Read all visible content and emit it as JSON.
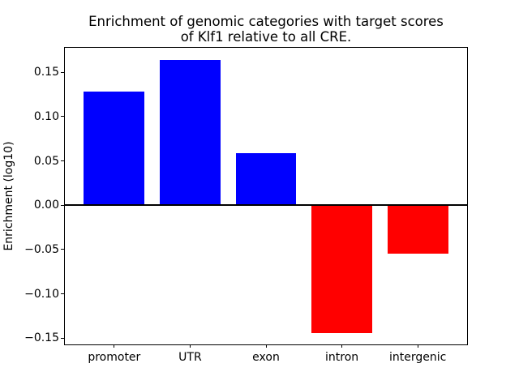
{
  "chart_data": {
    "type": "bar",
    "title": "Enrichment of genomic categories with target scores\nof Klf1 relative to all CRE.",
    "ylabel": "Enrichment (log10)",
    "xlabel": "",
    "categories": [
      "promoter",
      "UTR",
      "exon",
      "intron",
      "intergenic"
    ],
    "values": [
      0.128,
      0.164,
      0.059,
      -0.144,
      -0.055
    ],
    "positive_color": "#0000ff",
    "negative_color": "#ff0000",
    "yticks": [
      0.15,
      0.1,
      0.05,
      0.0,
      -0.05,
      -0.1,
      -0.15
    ],
    "ytick_labels": [
      "0.15",
      "0.10",
      "0.05",
      "0.00",
      "−0.05",
      "−0.10",
      "−0.15"
    ],
    "ylim": [
      -0.157,
      0.1775
    ],
    "grid": false,
    "zero_line": true,
    "axis_color": "#000000",
    "text_color": "#000000",
    "background_color": "#ffffff"
  }
}
